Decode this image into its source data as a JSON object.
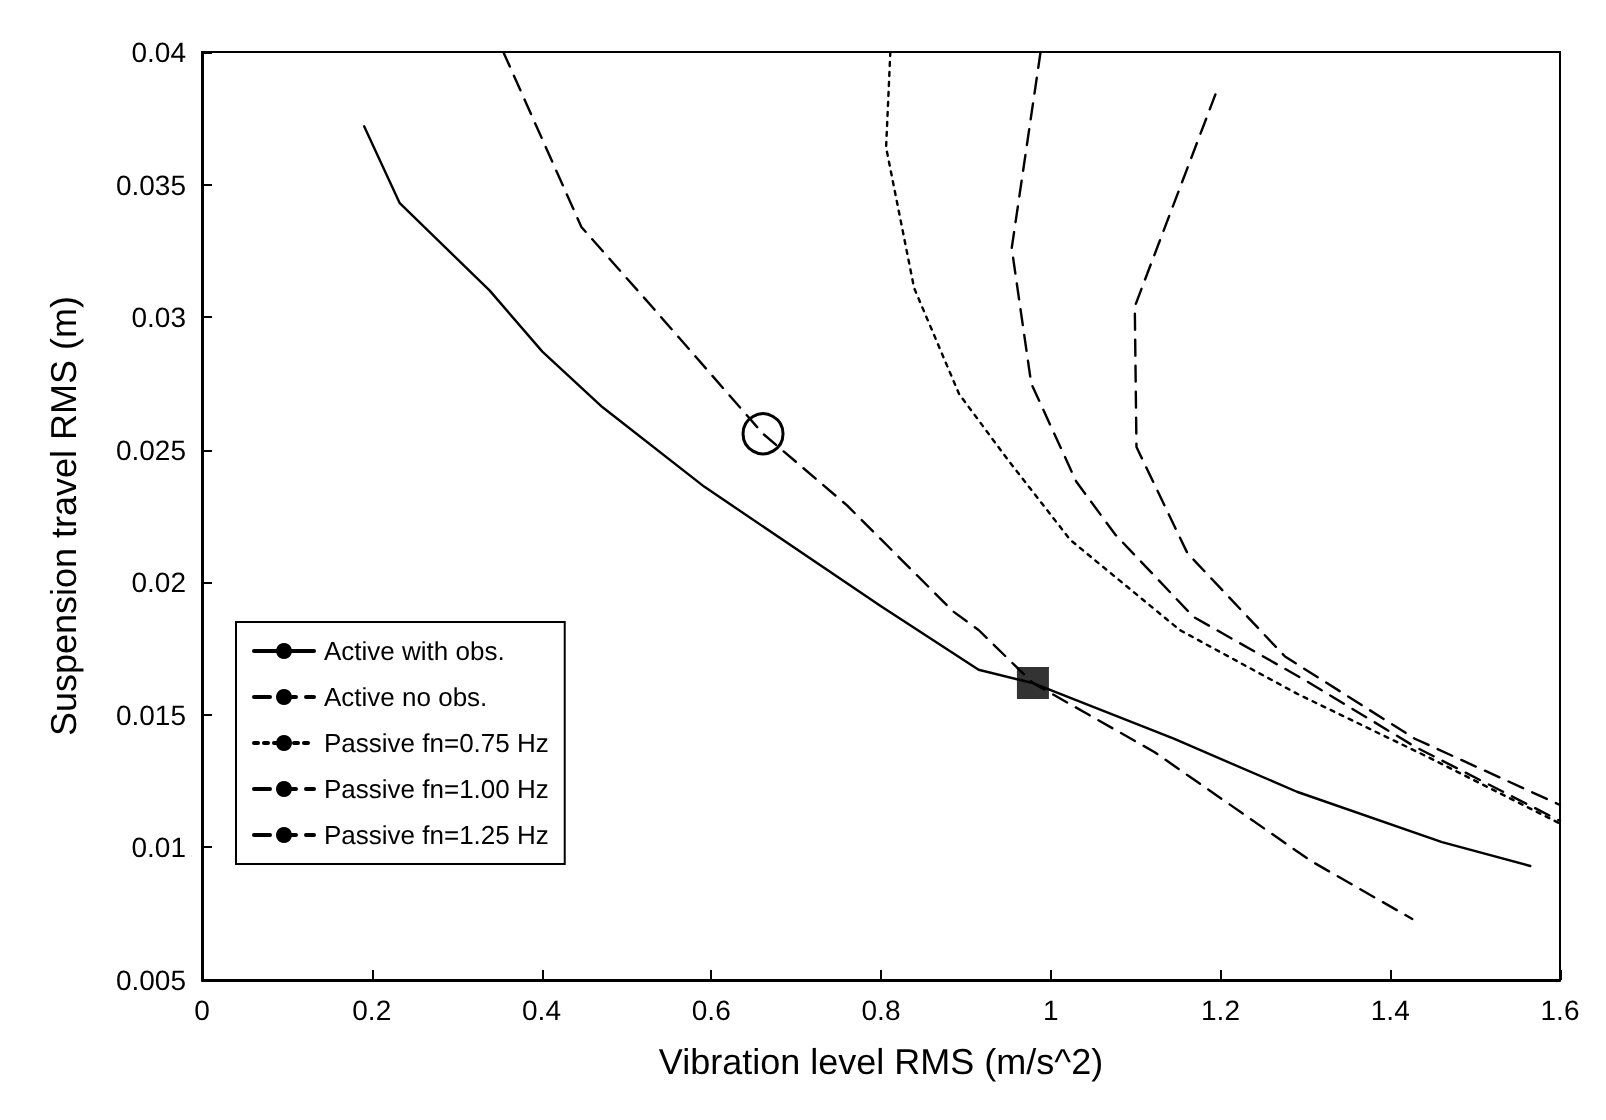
{
  "chart_data": {
    "type": "line",
    "xlabel": "Vibration level RMS (m/s^2)",
    "ylabel": "Suspension travel RMS (m)",
    "xlim": [
      0,
      1.6
    ],
    "xticks": [
      0,
      0.2,
      0.4,
      0.6,
      0.8,
      1,
      1.2,
      1.4,
      1.6
    ],
    "ylim": [
      0.005,
      0.04
    ],
    "yticks": [
      0.005,
      0.01,
      0.015,
      0.02,
      0.025,
      0.03,
      0.035,
      0.04
    ],
    "grid": false,
    "legend": "bottom left",
    "marker": "none",
    "series": [
      {
        "name": "Active with obs.",
        "color": "#000000",
        "line_style": "solid",
        "x": [
          0.191,
          0.233,
          0.339,
          0.401,
          0.472,
          0.592,
          0.8,
          0.915,
          0.979,
          1.145,
          1.29,
          1.461,
          1.565
        ],
        "values": [
          0.0372,
          0.0343,
          0.031,
          0.0287,
          0.0266,
          0.0236,
          0.0191,
          0.0167,
          0.0162,
          0.0141,
          0.0121,
          0.0102,
          0.0093
        ]
      },
      {
        "name": "Active no obs.",
        "color": "#000000",
        "line_style": "dashed",
        "x": [
          0.355,
          0.447,
          0.53,
          0.661,
          0.76,
          0.885,
          0.915,
          0.979,
          1.122,
          1.306,
          1.426
        ],
        "values": [
          0.04,
          0.0334,
          0.0304,
          0.0256,
          0.0229,
          0.0189,
          0.0182,
          0.0162,
          0.0136,
          0.0095,
          0.0073
        ]
      },
      {
        "name": "Passive fn=0.75 Hz",
        "color": "#000000",
        "line_style": "dotted",
        "x": [
          0.811,
          0.806,
          0.839,
          0.892,
          0.95,
          1.023,
          1.152,
          1.29,
          1.445,
          1.6
        ],
        "values": [
          0.04,
          0.0364,
          0.0311,
          0.0271,
          0.0246,
          0.0216,
          0.0182,
          0.0158,
          0.0134,
          0.0109
        ]
      },
      {
        "name": "Passive fn=1.00 Hz",
        "color": "#000000",
        "line_style": "dashed",
        "x": [
          0.988,
          0.954,
          0.977,
          1.03,
          1.076,
          1.168,
          1.3,
          1.429,
          1.6
        ],
        "values": [
          0.04,
          0.0326,
          0.0275,
          0.0238,
          0.0218,
          0.0187,
          0.0163,
          0.0138,
          0.011
        ]
      },
      {
        "name": "Passive fn=1.25 Hz",
        "color": "#000000",
        "line_style": "dashed",
        "x": [
          1.194,
          1.099,
          1.101,
          1.161,
          1.276,
          1.429,
          1.6
        ],
        "values": [
          0.0384,
          0.0304,
          0.0251,
          0.0211,
          0.0172,
          0.0141,
          0.0116
        ]
      },
      {
        "type": "scatter",
        "marker": "circle",
        "color": "#000000",
        "x": [
          0.661
        ],
        "values": [
          0.0256
        ]
      },
      {
        "type": "scatter",
        "marker": "square",
        "color": "#000000",
        "x": [
          0.979
        ],
        "values": [
          0.0162
        ]
      }
    ]
  }
}
